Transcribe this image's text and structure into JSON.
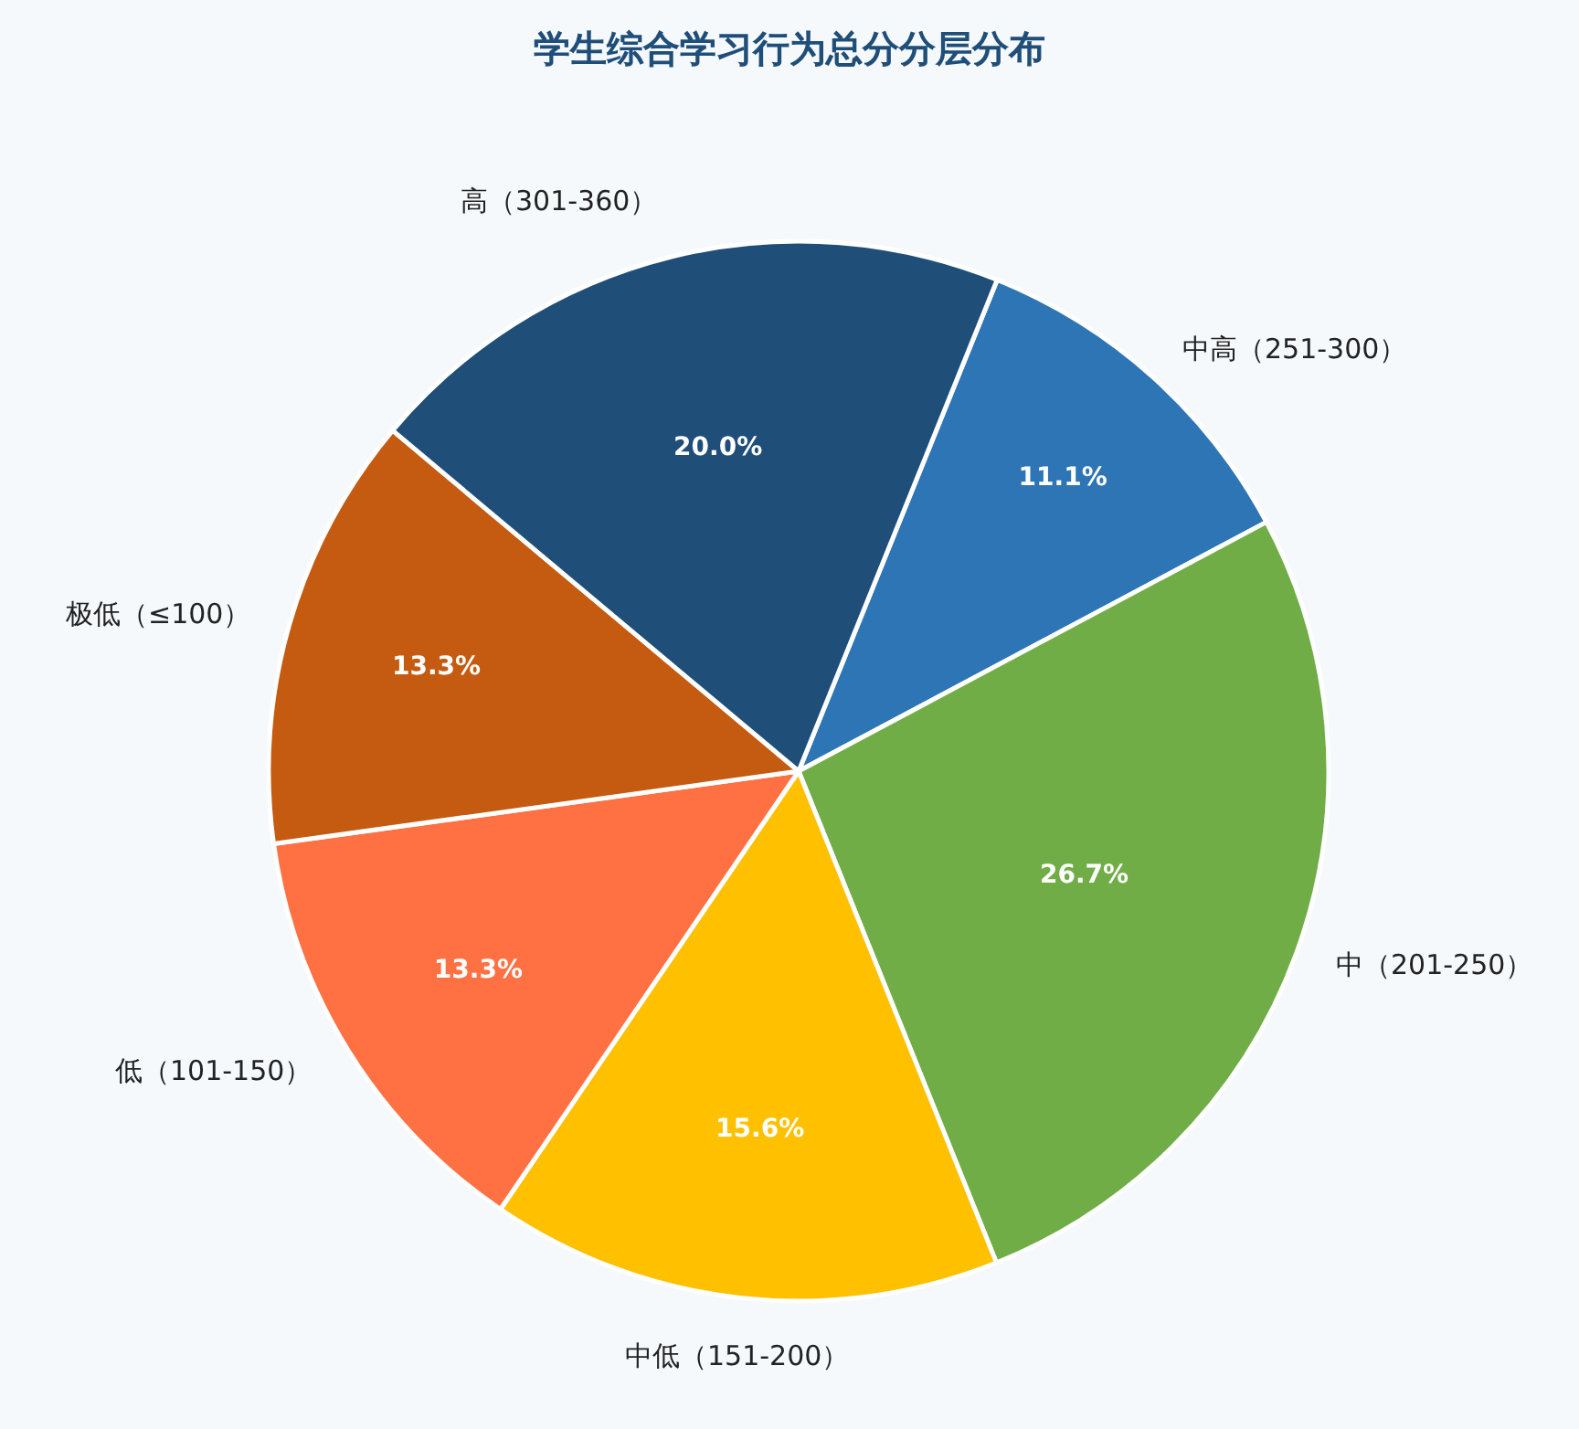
{
  "chart_data": {
    "type": "pie",
    "title": "学生综合学习行为总分分层分布",
    "categories": [
      "中高（251-300）",
      "中（201-250）",
      "中低（151-200）",
      "低（101-150）",
      "极低（≤100）",
      "高（301-360）"
    ],
    "values": [
      11.1,
      26.7,
      15.6,
      13.3,
      13.3,
      20.0
    ],
    "colors": [
      "#2e75b6",
      "#70ad47",
      "#ffc000",
      "#ff7043",
      "#c55a11",
      "#1f4e79"
    ],
    "value_labels": [
      "11.1%",
      "26.7%",
      "15.6%",
      "13.3%",
      "13.3%",
      "20.0%"
    ],
    "legend": false
  }
}
